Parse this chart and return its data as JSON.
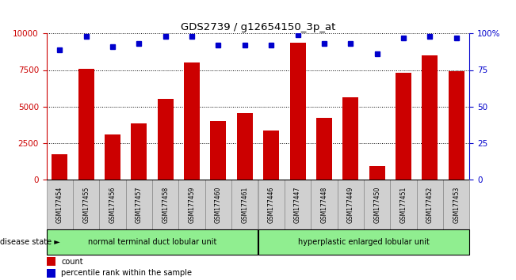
{
  "title": "GDS2739 / g12654150_3p_at",
  "samples": [
    "GSM177454",
    "GSM177455",
    "GSM177456",
    "GSM177457",
    "GSM177458",
    "GSM177459",
    "GSM177460",
    "GSM177461",
    "GSM177446",
    "GSM177447",
    "GSM177448",
    "GSM177449",
    "GSM177450",
    "GSM177451",
    "GSM177452",
    "GSM177453"
  ],
  "counts": [
    1700,
    7600,
    3050,
    3850,
    5500,
    8000,
    4000,
    4550,
    3350,
    9350,
    4200,
    5600,
    900,
    7300,
    8500,
    7400
  ],
  "percentiles": [
    89,
    98,
    91,
    93,
    98,
    98,
    92,
    92,
    92,
    99,
    93,
    93,
    86,
    97,
    98,
    97
  ],
  "group1_label": "normal terminal duct lobular unit",
  "group2_label": "hyperplastic enlarged lobular unit",
  "group1_count": 8,
  "group2_count": 8,
  "bar_color": "#cc0000",
  "dot_color": "#0000cc",
  "left_axis_color": "#cc0000",
  "right_axis_color": "#0000cc",
  "ylim_left": [
    0,
    10000
  ],
  "ylim_right": [
    0,
    100
  ],
  "yticks_left": [
    0,
    2500,
    5000,
    7500,
    10000
  ],
  "ytick_labels_left": [
    "0",
    "2500",
    "5000",
    "7500",
    "10000"
  ],
  "ytick_labels_right": [
    "0",
    "25",
    "50",
    "75",
    "100%"
  ],
  "group1_color": "#90ee90",
  "group2_color": "#90ee90",
  "cell_color": "#d0d0d0",
  "background_color": "#ffffff",
  "bar_width": 0.6
}
